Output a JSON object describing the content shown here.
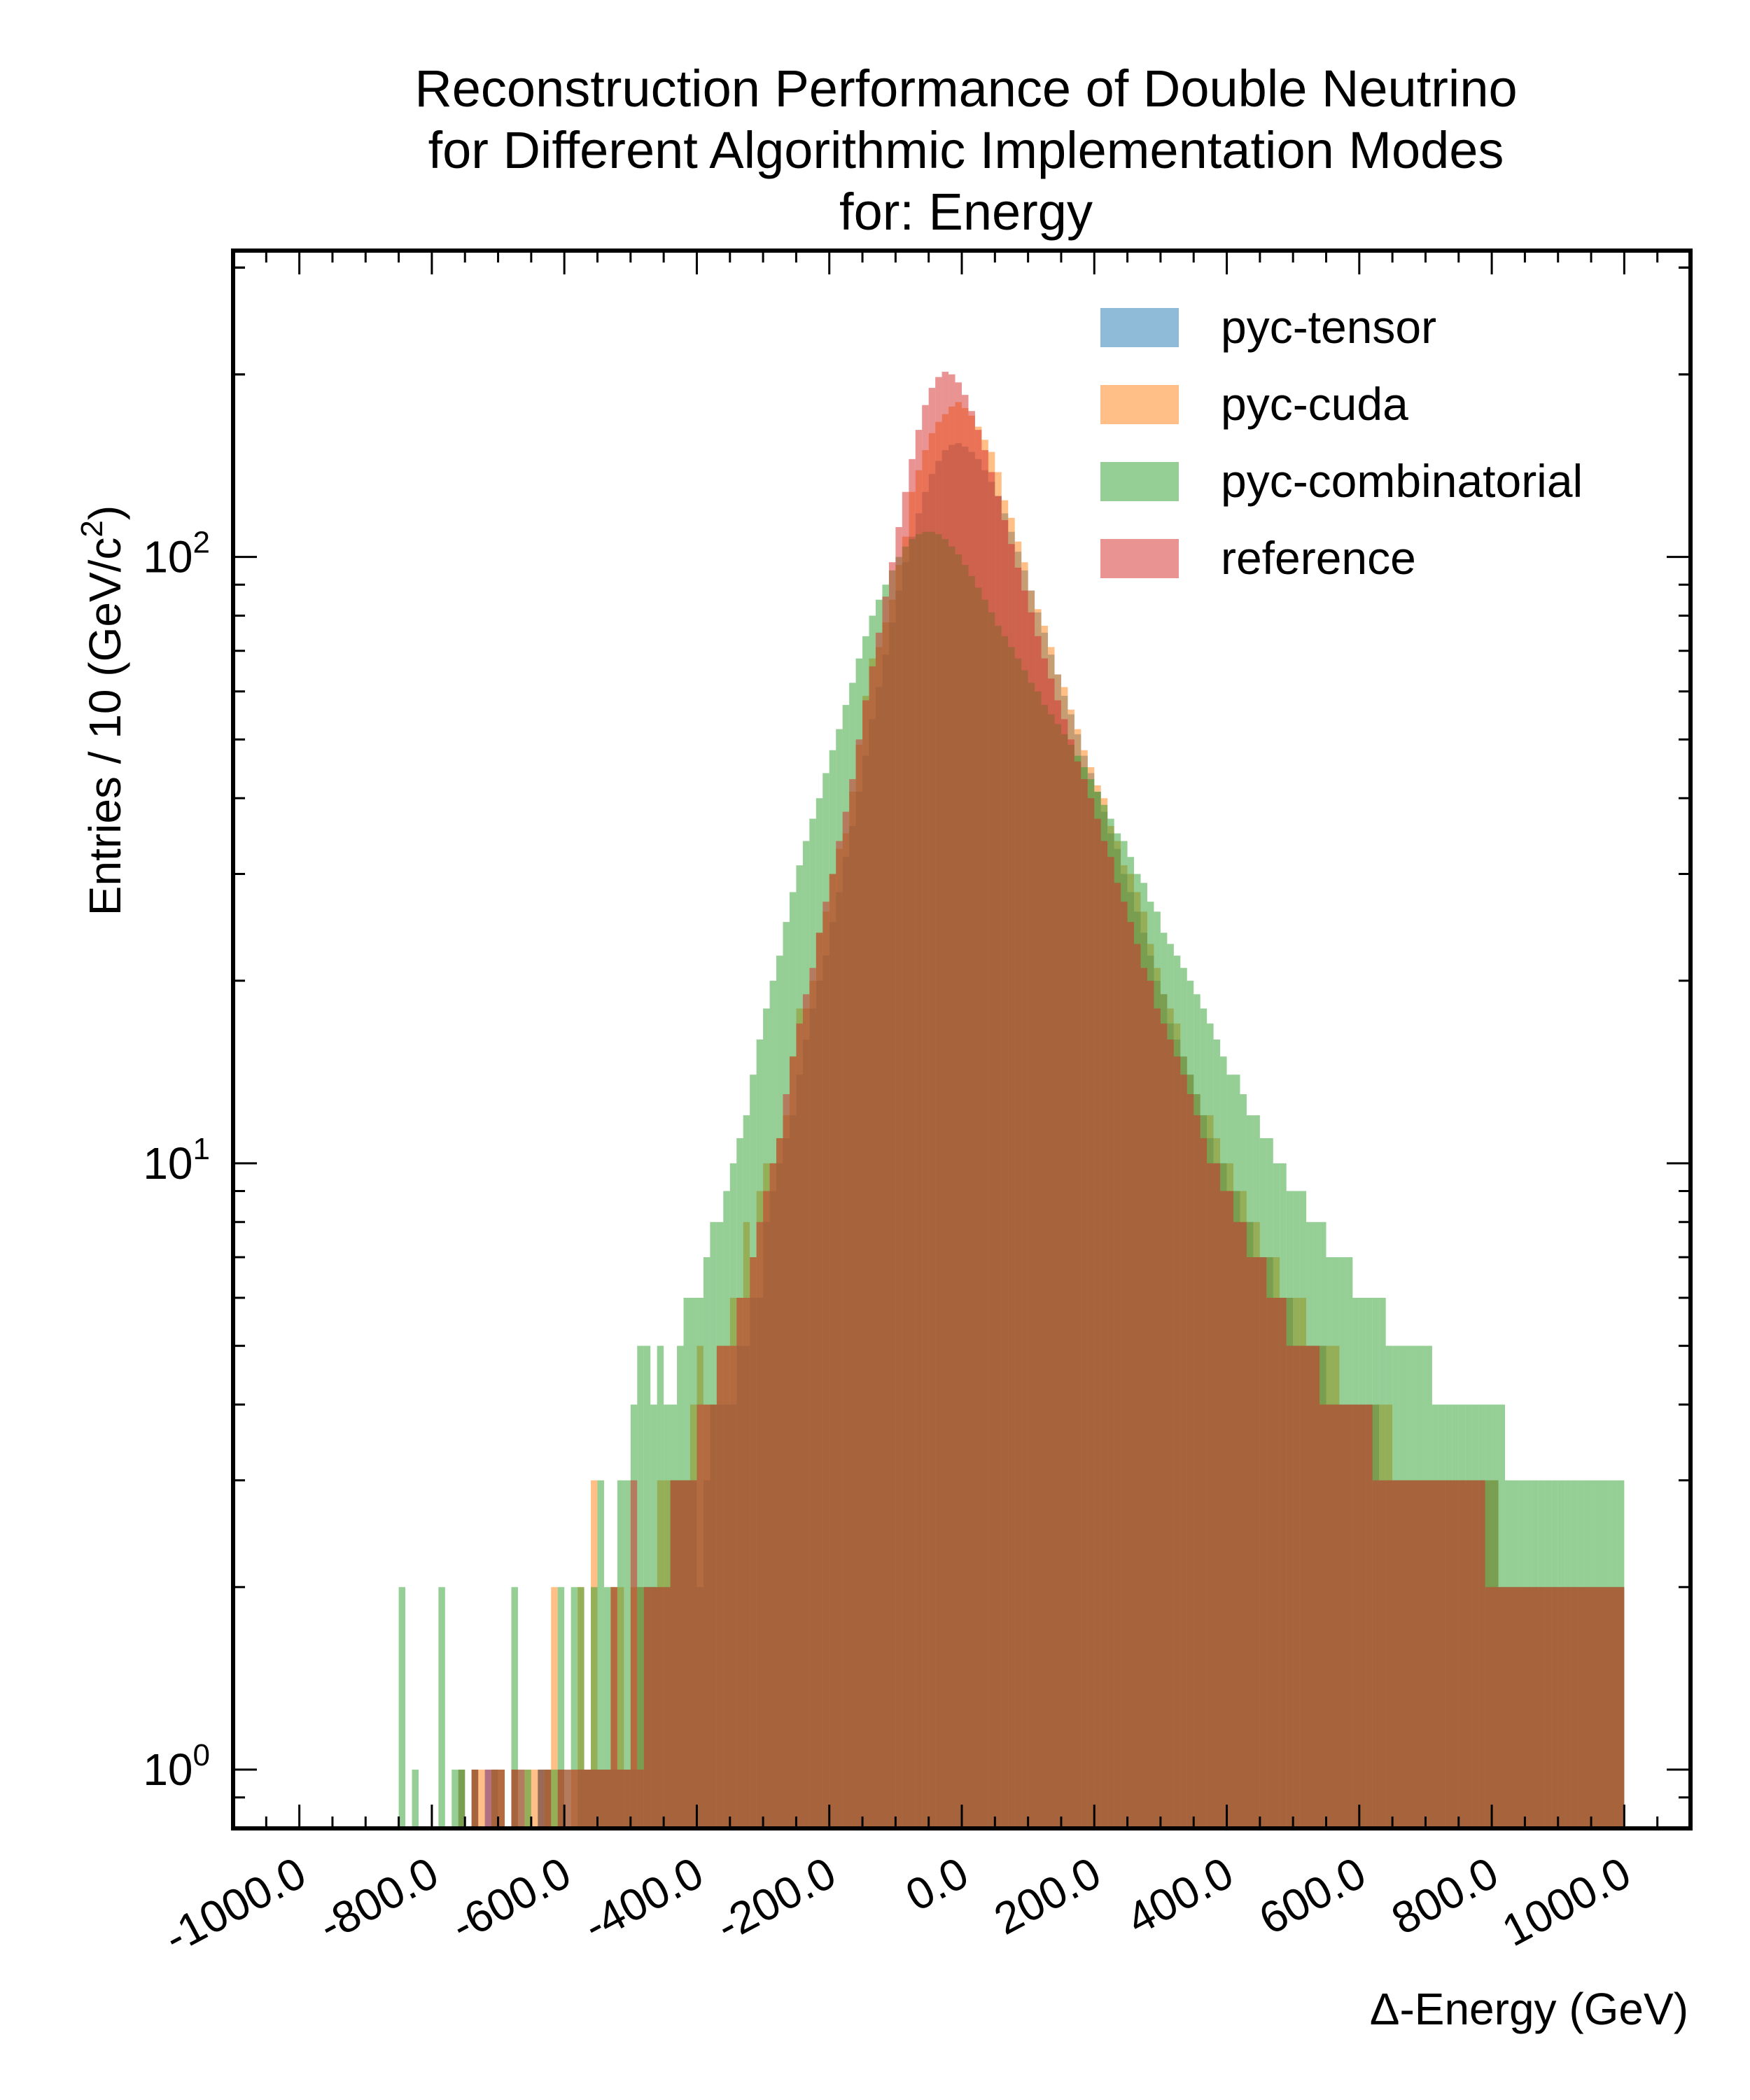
{
  "chart_data": {
    "type": "bar",
    "chart_kind": "histogram",
    "title": [
      "Reconstruction Performance of Double Neutrino",
      "for Different Algorithmic Implementation Modes",
      "for: Energy"
    ],
    "xlabel": "Δ-Energy (GeV)",
    "ylabel": "Entries  / 10 (GeV/c²)",
    "ylabel_parts": {
      "main": "Entries  / 10 (GeV/c",
      "sup": "2",
      "end": ")"
    },
    "x_scale": "linear",
    "y_scale": "log",
    "xlim": [
      -1100,
      1100
    ],
    "ylim": [
      0.8,
      320
    ],
    "bin_width": 10,
    "x_ticks": [
      -1000,
      -800,
      -600,
      -400,
      -200,
      0,
      200,
      400,
      600,
      800,
      1000
    ],
    "x_tick_labels": [
      "-1000.0",
      "-800.0",
      "-600.0",
      "-400.0",
      "-200.0",
      "0.0",
      "200.0",
      "400.0",
      "600.0",
      "800.0",
      "1000.0"
    ],
    "y_ticks": [
      1,
      10,
      100
    ],
    "y_tick_labels": [
      {
        "base": "10",
        "exp": "0"
      },
      {
        "base": "10",
        "exp": "1"
      },
      {
        "base": "10",
        "exp": "2"
      }
    ],
    "legend_position": "top-right",
    "grid": false,
    "bin_centers": [
      -845,
      -835,
      -825,
      -815,
      -805,
      -795,
      -785,
      -775,
      -765,
      -755,
      -745,
      -735,
      -725,
      -715,
      -705,
      -695,
      -685,
      -675,
      -665,
      -655,
      -645,
      -635,
      -625,
      -615,
      -605,
      -595,
      -585,
      -575,
      -565,
      -555,
      -545,
      -535,
      -525,
      -515,
      -505,
      -495,
      -485,
      -475,
      -465,
      -455,
      -445,
      -435,
      -425,
      -415,
      -405,
      -395,
      -385,
      -375,
      -365,
      -355,
      -345,
      -335,
      -325,
      -315,
      -305,
      -295,
      -285,
      -275,
      -265,
      -255,
      -245,
      -235,
      -225,
      -215,
      -205,
      -195,
      -185,
      -175,
      -165,
      -155,
      -145,
      -135,
      -125,
      -115,
      -105,
      -95,
      -85,
      -75,
      -65,
      -55,
      -45,
      -35,
      -25,
      -15,
      -5,
      5,
      15,
      25,
      35,
      45,
      55,
      65,
      75,
      85,
      95,
      105,
      115,
      125,
      135,
      145,
      155,
      165,
      175,
      185,
      195,
      205,
      215,
      225,
      235,
      245,
      255,
      265,
      275,
      285,
      295,
      305,
      315,
      325,
      335,
      345,
      355,
      365,
      375,
      385,
      395,
      405,
      415,
      425,
      435,
      445,
      455,
      465,
      475,
      485,
      495,
      505,
      515,
      525,
      535,
      545,
      555,
      565,
      575,
      585,
      595,
      605,
      615,
      625,
      635,
      645,
      655,
      665,
      675,
      685,
      695,
      705,
      715,
      725,
      735,
      745,
      755,
      765,
      775,
      785,
      795,
      805,
      815,
      825,
      835,
      845,
      855,
      865,
      875,
      885,
      895,
      905,
      915,
      925,
      935,
      945,
      955,
      965,
      975,
      985,
      995
    ],
    "series": [
      {
        "name": "pyc-tensor",
        "color": "#1f77b4",
        "values": [
          0,
          0,
          0,
          0,
          0,
          0,
          0,
          0,
          0,
          1,
          0,
          1,
          0,
          1,
          1,
          0,
          0,
          1,
          0,
          0,
          0,
          1,
          1,
          0,
          1,
          0,
          0,
          1,
          1,
          1,
          1,
          1,
          1,
          1,
          1,
          1,
          2,
          2,
          2,
          2,
          2,
          3,
          3,
          3,
          3,
          2,
          3,
          4,
          4,
          4,
          4,
          5,
          5,
          6,
          6,
          8,
          9,
          10,
          11,
          12,
          14,
          16,
          18,
          20,
          22,
          25,
          28,
          32,
          36,
          41,
          47,
          54,
          61,
          69,
          78,
          88,
          98,
          108,
          118,
          128,
          137,
          144,
          150,
          153,
          154,
          152,
          149,
          145,
          139,
          133,
          126,
          118,
          110,
          102,
          95,
          88,
          81,
          75,
          69,
          64,
          59,
          55,
          51,
          47,
          44,
          41,
          38,
          35,
          33,
          30,
          28,
          26,
          24,
          22,
          20,
          19,
          17,
          16,
          15,
          14,
          13,
          12,
          11,
          10,
          10,
          9,
          9,
          8,
          8,
          7,
          7,
          7,
          6,
          6,
          6,
          5,
          5,
          5,
          5,
          5,
          4,
          4,
          4,
          4,
          4,
          4,
          4,
          4,
          3,
          3,
          3,
          3,
          3,
          3,
          3,
          3,
          3,
          3,
          3,
          3,
          3,
          3,
          3,
          3,
          3,
          3,
          2,
          2,
          2,
          2,
          2,
          2,
          2,
          2,
          2,
          2,
          2,
          2,
          2,
          2,
          2,
          2,
          2,
          2,
          2
        ]
      },
      {
        "name": "pyc-cuda",
        "color": "#ff7f0e",
        "values": [
          0,
          0,
          0,
          0,
          0,
          0,
          0,
          0,
          0,
          1,
          0,
          1,
          1,
          0,
          1,
          1,
          0,
          1,
          0,
          1,
          1,
          0,
          1,
          2,
          1,
          0,
          1,
          2,
          1,
          3,
          1,
          1,
          2,
          2,
          1,
          2,
          2,
          2,
          2,
          3,
          3,
          3,
          3,
          3,
          4,
          5,
          4,
          4,
          5,
          5,
          6,
          6,
          8,
          7,
          9,
          10,
          10,
          11,
          12,
          15,
          18,
          18,
          20,
          24,
          26,
          30,
          33,
          35,
          41,
          49,
          59,
          68,
          71,
          78,
          85,
          97,
          108,
          128,
          139,
          150,
          160,
          167,
          172,
          177,
          180,
          176,
          171,
          164,
          156,
          149,
          138,
          124,
          116,
          106,
          98,
          88,
          82,
          77,
          71,
          64,
          61,
          56,
          52,
          48,
          45,
          42,
          40,
          36,
          34,
          31,
          30,
          28,
          26,
          23,
          21,
          19,
          18,
          17,
          15,
          14,
          13,
          12,
          12,
          11,
          10,
          10,
          9,
          9,
          8,
          8,
          7,
          7,
          7,
          6,
          6,
          6,
          6,
          5,
          5,
          5,
          5,
          5,
          4,
          4,
          4,
          4,
          4,
          4,
          4,
          4,
          3,
          3,
          3,
          3,
          3,
          3,
          3,
          3,
          3,
          3,
          3,
          3,
          3,
          3,
          3,
          3,
          2,
          2,
          2,
          2,
          2,
          2,
          2,
          2,
          2,
          2,
          2,
          2,
          2,
          2,
          2,
          2,
          2,
          2,
          2
        ]
      },
      {
        "name": "pyc-combinatorial",
        "color": "#2ca02c",
        "values": [
          2,
          0,
          1,
          0,
          0,
          0,
          2,
          0,
          1,
          1,
          0,
          1,
          0,
          0,
          1,
          1,
          0,
          2,
          1,
          1,
          0,
          1,
          1,
          1,
          2,
          1,
          2,
          2,
          1,
          2,
          3,
          2,
          2,
          3,
          3,
          4,
          5,
          5,
          4,
          5,
          4,
          4,
          5,
          6,
          6,
          6,
          7,
          8,
          8,
          9,
          10,
          11,
          12,
          14,
          16,
          18,
          20,
          22,
          25,
          28,
          31,
          34,
          37,
          40,
          44,
          48,
          52,
          57,
          62,
          68,
          74,
          80,
          85,
          90,
          95,
          100,
          104,
          107,
          109,
          110,
          110,
          109,
          107,
          104,
          101,
          97,
          93,
          89,
          85,
          81,
          77,
          74,
          71,
          68,
          65,
          62,
          60,
          57,
          55,
          53,
          51,
          49,
          47,
          45,
          43,
          41,
          39,
          37,
          35,
          34,
          32,
          30,
          29,
          27,
          26,
          24,
          23,
          22,
          21,
          20,
          19,
          18,
          17,
          16,
          15,
          14,
          14,
          13,
          12,
          12,
          11,
          11,
          10,
          10,
          9,
          9,
          9,
          8,
          8,
          8,
          7,
          7,
          7,
          7,
          6,
          6,
          6,
          6,
          6,
          5,
          5,
          5,
          5,
          5,
          5,
          5,
          4,
          4,
          4,
          4,
          4,
          4,
          4,
          4,
          4,
          4,
          4,
          3,
          3,
          3,
          3,
          3,
          3,
          3,
          3,
          3,
          3,
          3,
          3,
          3,
          3,
          3,
          3,
          3,
          3
        ]
      },
      {
        "name": "reference",
        "color": "#d62728",
        "values": [
          0,
          0,
          0,
          0,
          0,
          0,
          0,
          0,
          0,
          0,
          0,
          1,
          0,
          1,
          1,
          1,
          0,
          1,
          1,
          0,
          0,
          1,
          1,
          0,
          1,
          1,
          1,
          1,
          1,
          1,
          1,
          1,
          2,
          1,
          1,
          3,
          1,
          2,
          2,
          2,
          2,
          3,
          3,
          3,
          3,
          4,
          4,
          4,
          5,
          5,
          5,
          6,
          6,
          7,
          8,
          9,
          10,
          11,
          13,
          15,
          17,
          19,
          21,
          24,
          27,
          30,
          34,
          38,
          43,
          50,
          58,
          66,
          75,
          86,
          98,
          112,
          128,
          145,
          162,
          178,
          190,
          198,
          202,
          200,
          194,
          185,
          174,
          162,
          150,
          138,
          126,
          115,
          105,
          96,
          88,
          81,
          74,
          68,
          63,
          58,
          54,
          50,
          46,
          43,
          40,
          37,
          34,
          32,
          29,
          27,
          25,
          23,
          21,
          20,
          18,
          17,
          16,
          15,
          14,
          13,
          12,
          11,
          10,
          10,
          9,
          9,
          8,
          8,
          7,
          7,
          7,
          6,
          6,
          6,
          5,
          5,
          5,
          5,
          5,
          4,
          4,
          4,
          4,
          4,
          4,
          4,
          4,
          3,
          3,
          3,
          3,
          3,
          3,
          3,
          3,
          3,
          3,
          3,
          3,
          3,
          3,
          3,
          3,
          3,
          2,
          2,
          2,
          2,
          2,
          2,
          2,
          2,
          2,
          2,
          2,
          2,
          2,
          2,
          2,
          2,
          2,
          2,
          2,
          2,
          2
        ]
      }
    ]
  }
}
